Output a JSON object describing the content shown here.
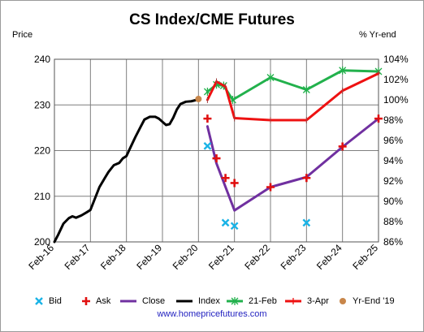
{
  "title": "CS Index/CME Futures",
  "left_axis_label": "Price",
  "right_axis_label": "% Yr-end",
  "website": "www.homepricefutures.com",
  "colors": {
    "bid": "#1ab3e6",
    "ask": "#e01010",
    "close": "#7030a0",
    "index": "#000000",
    "feb21": "#22b14c",
    "apr3": "#ee1111",
    "yrend": "#c8864a"
  },
  "legend": [
    {
      "key": "bid",
      "label": "Bid"
    },
    {
      "key": "ask",
      "label": "Ask"
    },
    {
      "key": "close",
      "label": "Close"
    },
    {
      "key": "index",
      "label": "Index"
    },
    {
      "key": "feb21",
      "label": "21-Feb"
    },
    {
      "key": "apr3",
      "label": "3-Apr"
    },
    {
      "key": "yrend",
      "label": "Yr-End '19"
    }
  ],
  "chart_data": {
    "type": "line",
    "x_ticks": [
      "Feb-16",
      "Feb-17",
      "Feb-18",
      "Feb-19",
      "Feb-20",
      "Feb-21",
      "Feb-22",
      "Feb-23",
      "Feb-24",
      "Feb-25"
    ],
    "y_left": {
      "ticks": [
        200,
        210,
        220,
        230,
        240
      ],
      "range": [
        200,
        240
      ]
    },
    "y_right": {
      "ticks": [
        "86%",
        "88%",
        "90%",
        "92%",
        "94%",
        "96%",
        "98%",
        "100%",
        "102%",
        "104%"
      ],
      "range": [
        86,
        104
      ]
    },
    "grid": true,
    "series": [
      {
        "name": "Index",
        "key": "index",
        "axis": "left",
        "style": "line",
        "points": [
          [
            2016.0,
            200.0
          ],
          [
            2016.1,
            201.5
          ],
          [
            2016.25,
            204.0
          ],
          [
            2016.4,
            205.2
          ],
          [
            2016.5,
            205.6
          ],
          [
            2016.6,
            205.3
          ],
          [
            2016.75,
            205.8
          ],
          [
            2016.9,
            206.5
          ],
          [
            2017.0,
            207.0
          ],
          [
            2017.1,
            209.0
          ],
          [
            2017.25,
            212.0
          ],
          [
            2017.4,
            214.0
          ],
          [
            2017.5,
            215.3
          ],
          [
            2017.65,
            216.8
          ],
          [
            2017.8,
            217.3
          ],
          [
            2017.9,
            218.3
          ],
          [
            2018.0,
            218.8
          ],
          [
            2018.1,
            220.5
          ],
          [
            2018.25,
            223.0
          ],
          [
            2018.4,
            225.3
          ],
          [
            2018.5,
            226.8
          ],
          [
            2018.65,
            227.4
          ],
          [
            2018.8,
            227.4
          ],
          [
            2018.9,
            227.0
          ],
          [
            2019.0,
            226.3
          ],
          [
            2019.1,
            225.6
          ],
          [
            2019.2,
            225.8
          ],
          [
            2019.3,
            227.2
          ],
          [
            2019.4,
            229.0
          ],
          [
            2019.5,
            230.2
          ],
          [
            2019.65,
            230.7
          ],
          [
            2019.8,
            230.8
          ],
          [
            2019.9,
            231.0
          ],
          [
            2020.0,
            231.2
          ]
        ]
      },
      {
        "name": "21-Feb",
        "key": "feb21",
        "axis": "right",
        "style": "line-star",
        "points": [
          [
            2020.25,
            100.8
          ],
          [
            2020.5,
            101.5
          ],
          [
            2020.7,
            101.4
          ],
          [
            2020.95,
            100.0
          ],
          [
            2022.0,
            102.2
          ],
          [
            2023.0,
            101.0
          ],
          [
            2024.0,
            102.9
          ],
          [
            2025.0,
            102.8
          ]
        ]
      },
      {
        "name": "3-Apr",
        "key": "apr3",
        "axis": "right",
        "style": "line-dash",
        "points": [
          [
            2020.25,
            100.0
          ],
          [
            2020.5,
            101.8
          ],
          [
            2020.75,
            101.3
          ],
          [
            2021.0,
            98.2
          ],
          [
            2022.0,
            98.0
          ],
          [
            2023.0,
            98.0
          ],
          [
            2024.0,
            100.9
          ],
          [
            2025.0,
            102.6
          ]
        ]
      },
      {
        "name": "Close",
        "key": "close",
        "axis": "left",
        "style": "line",
        "points": [
          [
            2020.25,
            225.3
          ],
          [
            2020.5,
            217.2
          ],
          [
            2021.0,
            206.9
          ],
          [
            2022.0,
            212.0
          ],
          [
            2023.0,
            214.2
          ],
          [
            2024.0,
            220.8
          ],
          [
            2025.0,
            227.0
          ]
        ]
      },
      {
        "name": "Bid",
        "key": "bid",
        "axis": "left",
        "style": "x-marker",
        "points": [
          [
            2020.25,
            221.0
          ],
          [
            2020.75,
            204.2
          ],
          [
            2021.0,
            203.5
          ],
          [
            2023.0,
            204.2
          ]
        ]
      },
      {
        "name": "Ask",
        "key": "ask",
        "axis": "left",
        "style": "plus-marker",
        "points": [
          [
            2020.25,
            227.0
          ],
          [
            2020.5,
            218.3
          ],
          [
            2020.75,
            214.0
          ],
          [
            2021.0,
            212.9
          ],
          [
            2022.0,
            212.0
          ],
          [
            2023.0,
            214.0
          ],
          [
            2024.0,
            220.9
          ],
          [
            2025.0,
            227.0
          ]
        ]
      },
      {
        "name": "Yr-End '19",
        "key": "yrend",
        "axis": "left",
        "style": "dot",
        "points": [
          [
            2020.0,
            231.3
          ]
        ]
      }
    ]
  }
}
